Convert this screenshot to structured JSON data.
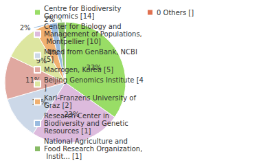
{
  "chart_data": {
    "type": "pie",
    "categories": [
      "Centre for Biodiversity Genomics [14]",
      "Center for Biology and Management of Populations, Montpellier [10]",
      "Mined from GenBank, NCBI [5]",
      "Macrogen, Korea [5]",
      "Beijing Genomics Institute [4]",
      "Karl-Franzens University of Graz [2]",
      "Research Center in Biodiversity and Genetic Resources [1]",
      "National Agriculture and Food Research Organization, Instit... [1]",
      "0 Others []"
    ],
    "values": [
      33,
      23,
      11,
      11,
      9,
      4,
      2,
      2,
      0
    ],
    "value_labels": [
      "33%",
      "23%",
      "11%",
      "11%",
      "9%",
      "4%",
      "2%",
      "2%",
      null
    ],
    "colors": [
      "#99dd66",
      "#ddbbdd",
      "#ccd8e8",
      "#e0a8a0",
      "#dde6a0",
      "#f0b070",
      "#99bbe0",
      "#88bb66",
      "#e07050"
    ],
    "data_labels": true,
    "legend": "right"
  }
}
